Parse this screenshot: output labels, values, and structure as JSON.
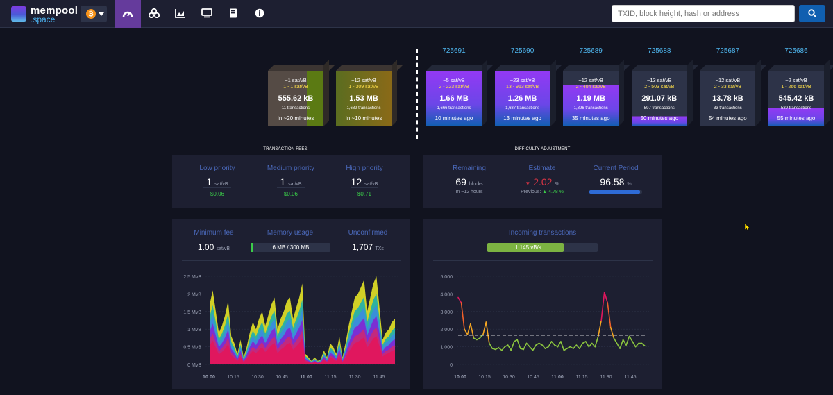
{
  "logo": {
    "line1": "mempool",
    "line2": ".space"
  },
  "network": {
    "symbol": "₿"
  },
  "nav": [
    "dashboard-icon",
    "mining-icon",
    "graphs-icon",
    "tv-icon",
    "docs-icon",
    "about-icon"
  ],
  "search": {
    "placeholder": "TXID, block height, hash or address"
  },
  "mempool_blocks": [
    {
      "fee": "~1 sat/vB",
      "range": "1 - 1 sat/vB",
      "size": "555.62 kB",
      "tx": "11 transactions",
      "time": "In ~20 minutes",
      "fill_pct": 30
    },
    {
      "fee": "~12 sat/vB",
      "range": "1 - 309 sat/vB",
      "size": "1.53 MB",
      "tx": "1,689 transactions",
      "time": "In ~10 minutes",
      "fill_pct": 100
    }
  ],
  "blocks": [
    {
      "height": "725691",
      "fee": "~5 sat/vB",
      "range": "2 - 223 sat/vB",
      "size": "1.66 MB",
      "tx": "1,666 transactions",
      "time": "10 minutes ago",
      "fill_pct": 100
    },
    {
      "height": "725690",
      "fee": "~23 sat/vB",
      "range": "13 - 913 sat/vB",
      "size": "1.26 MB",
      "tx": "1,687 transactions",
      "time": "13 minutes ago",
      "fill_pct": 100
    },
    {
      "height": "725689",
      "fee": "~12 sat/vB",
      "range": "2 - 404 sat/vB",
      "size": "1.19 MB",
      "tx": "1,896 transactions",
      "time": "35 minutes ago",
      "fill_pct": 75
    },
    {
      "height": "725688",
      "fee": "~13 sat/vB",
      "range": "2 - 503 sat/vB",
      "size": "291.07 kB",
      "tx": "597 transactions",
      "time": "50 minutes ago",
      "fill_pct": 18
    },
    {
      "height": "725687",
      "fee": "~12 sat/vB",
      "range": "2 - 33 sat/vB",
      "size": "13.78 kB",
      "tx": "33 transactions",
      "time": "54 minutes ago",
      "fill_pct": 1
    },
    {
      "height": "725686",
      "fee": "~2 sat/vB",
      "range": "1 - 266 sat/vB",
      "size": "545.42 kB",
      "tx": "589 transactions",
      "time": "55 minutes ago",
      "fill_pct": 33
    }
  ],
  "fees": {
    "title": "TRANSACTION FEES",
    "items": [
      {
        "label": "Low priority",
        "value": "1",
        "unit": "sat/vB",
        "usd": "$0.06"
      },
      {
        "label": "Medium priority",
        "value": "1",
        "unit": "sat/vB",
        "usd": "$0.06"
      },
      {
        "label": "High priority",
        "value": "12",
        "unit": "sat/vB",
        "usd": "$0.71"
      }
    ]
  },
  "difficulty": {
    "title": "DIFFICULTY ADJUSTMENT",
    "remaining_label": "Remaining",
    "remaining_value": "69",
    "remaining_unit": "blocks",
    "remaining_sub": "In ~12 hours",
    "estimate_label": "Estimate",
    "estimate_arrow": "▼",
    "estimate_value": "2.02",
    "estimate_unit": "%",
    "previous_label": "Previous:",
    "previous_arrow": "▲",
    "previous_value": "4.78",
    "previous_unit": "%",
    "period_label": "Current Period",
    "period_value": "96.58",
    "period_unit": "%",
    "period_fill": 96.58
  },
  "mempool_stats": {
    "min_fee_label": "Minimum fee",
    "min_fee_value": "1.00",
    "min_fee_unit": "sat/vB",
    "memory_label": "Memory usage",
    "memory_value": "6 MB / 300 MB",
    "memory_fill": 2,
    "unconfirmed_label": "Unconfirmed",
    "unconfirmed_value": "1,707",
    "unconfirmed_unit": "TXs"
  },
  "incoming": {
    "label": "Incoming transactions",
    "value": "1,145 vB/s",
    "fill": 69
  },
  "chart_data": [
    {
      "type": "area",
      "xlabel": "",
      "ylabel": "",
      "yticks": [
        "0 MvB",
        "0.5 MvB",
        "1 MvB",
        "1.5 MvB",
        "2 MvB",
        "2.5 MvB"
      ],
      "xticks": [
        "10:00",
        "10:15",
        "10:30",
        "10:45",
        "11:00",
        "11:15",
        "11:30",
        "11:45"
      ],
      "ylim": [
        0,
        2.5
      ],
      "x": [
        0,
        1,
        2,
        3,
        4,
        5,
        6,
        7,
        8,
        9,
        10,
        11,
        12,
        13,
        14,
        15,
        16,
        17,
        18,
        19,
        20,
        21,
        22,
        23,
        24,
        25,
        26,
        27,
        28,
        29,
        30,
        31,
        32,
        33,
        34,
        35,
        36,
        37,
        38,
        39,
        40,
        41,
        42,
        43,
        44,
        45,
        46,
        47,
        48,
        49,
        50,
        51,
        52,
        53,
        54,
        55,
        56,
        57,
        58,
        59,
        60
      ],
      "values": [
        1.7,
        2.1,
        1.5,
        0.9,
        1.1,
        1.4,
        1.8,
        0.8,
        0.6,
        0.3,
        0.7,
        0.2,
        0.5,
        0.9,
        1.2,
        1.0,
        1.3,
        1.5,
        1.1,
        1.4,
        1.7,
        1.9,
        1.0,
        1.3,
        1.5,
        1.8,
        1.9,
        1.3,
        1.6,
        1.9,
        2.3,
        0.3,
        0.2,
        0.1,
        0.2,
        0.1,
        0.15,
        0.4,
        0.2,
        0.6,
        0.5,
        0.3,
        0.8,
        0.2,
        0.6,
        1.1,
        1.5,
        1.9,
        2.0,
        2.2,
        2.4,
        1.5,
        1.9,
        2.3,
        2.5,
        1.6,
        0.7,
        0.9,
        1.0,
        1.2,
        1.3
      ]
    },
    {
      "type": "line",
      "xlabel": "",
      "ylabel": "",
      "yticks": [
        "0",
        "1,000",
        "2,000",
        "3,000",
        "4,000",
        "5,000"
      ],
      "xticks": [
        "10:00",
        "10:15",
        "10:30",
        "10:45",
        "11:00",
        "11:15",
        "11:30",
        "11:45"
      ],
      "ylim": [
        0,
        5000
      ],
      "threshold": 1667,
      "values": [
        3800,
        3500,
        2000,
        1700,
        2300,
        1500,
        1400,
        1500,
        1700,
        2400,
        1200,
        900,
        850,
        950,
        800,
        1000,
        1100,
        800,
        1300,
        1400,
        900,
        850,
        1200,
        1000,
        800,
        1100,
        1200,
        1100,
        900,
        1000,
        1300,
        1100,
        1000,
        1300,
        800,
        900,
        1000,
        900,
        1100,
        900,
        1200,
        1300,
        1000,
        1200,
        1000,
        1600,
        2500,
        4100,
        3500,
        2100,
        1500,
        1200,
        900,
        1400,
        1100,
        1600,
        1300,
        1000,
        1200,
        1200,
        1050
      ]
    }
  ]
}
